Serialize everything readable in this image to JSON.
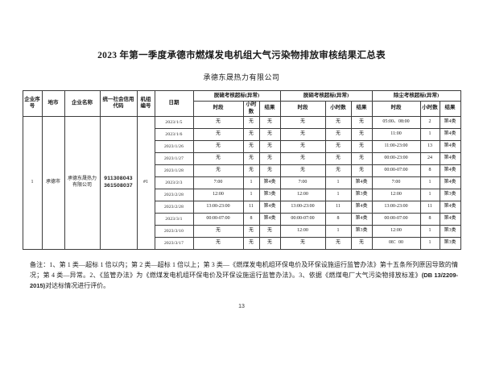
{
  "page": {
    "title": "2023 年第一季度承德市燃煤发电机组大气污染物排放审核结果汇总表",
    "subtitle": "承德东晟热力有限公司",
    "page_number": "13"
  },
  "table": {
    "headers": {
      "serial": "企业序号",
      "city": "地市",
      "company": "企业名称",
      "credit_code": "统一社会信用代码",
      "unit_no": "机组编号",
      "date": "日期",
      "groups": [
        {
          "label": "脱硫考核超标(异常)"
        },
        {
          "label": "脱硝考核超标(异常)"
        },
        {
          "label": "除尘考核超标(异常)"
        }
      ],
      "sub": [
        "时段",
        "小时数",
        "结果"
      ]
    },
    "company_info": {
      "serial": "1",
      "city": "承德市",
      "name": "承德东晟热力有限公司",
      "credit_code": "911308043\n361508037",
      "unit_no": "#1"
    },
    "rows": [
      {
        "date": "2023/1/5",
        "so2": [
          "无",
          "无",
          "无"
        ],
        "nox": [
          "无",
          "无",
          "无"
        ],
        "dust": [
          "05:00、08:00",
          "2",
          "第4类"
        ]
      },
      {
        "date": "2023/1/6",
        "so2": [
          "无",
          "无",
          "无"
        ],
        "nox": [
          "无",
          "无",
          "无"
        ],
        "dust": [
          "11:00",
          "1",
          "第4类"
        ]
      },
      {
        "date": "2023/1/26",
        "so2": [
          "无",
          "无",
          "无"
        ],
        "nox": [
          "无",
          "无",
          "无"
        ],
        "dust": [
          "11:00-23:00",
          "13",
          "第4类"
        ]
      },
      {
        "date": "2023/1/27",
        "so2": [
          "无",
          "无",
          "无"
        ],
        "nox": [
          "无",
          "无",
          "无"
        ],
        "dust": [
          "00:00-23:00",
          "24",
          "第4类"
        ]
      },
      {
        "date": "2023/1/28",
        "so2": [
          "无",
          "无",
          "无"
        ],
        "nox": [
          "无",
          "无",
          "无"
        ],
        "dust": [
          "00:00-07:00",
          "8",
          "第4类"
        ]
      },
      {
        "date": "2023/2/3",
        "so2": [
          "7:00",
          "1",
          "第4类"
        ],
        "nox": [
          "7:00",
          "1",
          "第4类"
        ],
        "dust": [
          "7:00",
          "1",
          "第4类"
        ]
      },
      {
        "date": "2023/2/28",
        "so2": [
          "12:00",
          "1",
          "第3类"
        ],
        "nox": [
          "12:00",
          "1",
          "第3类"
        ],
        "dust": [
          "12:00",
          "1",
          "第3类"
        ]
      },
      {
        "date": "2023/2/28",
        "so2": [
          "13:00-23:00",
          "11",
          "第4类"
        ],
        "nox": [
          "13:00-23:00",
          "11",
          "第4类"
        ],
        "dust": [
          "13:00-23:00",
          "11",
          "第4类"
        ]
      },
      {
        "date": "2023/3/1",
        "so2": [
          "00:00-07:00",
          "8",
          "第4类"
        ],
        "nox": [
          "00:00-07:00",
          "8",
          "第4类"
        ],
        "dust": [
          "00:00-07:00",
          "8",
          "第4类"
        ]
      },
      {
        "date": "2023/3/10",
        "so2": [
          "无",
          "无",
          "无"
        ],
        "nox": [
          "12:00",
          "1",
          "第3类"
        ],
        "dust": [
          "12:00",
          "1",
          "第3类"
        ]
      },
      {
        "date": "2023/3/17",
        "so2": [
          "无",
          "无",
          "无"
        ],
        "nox": [
          "无",
          "无",
          "无"
        ],
        "dust": [
          "08：00",
          "1",
          "第3类"
        ]
      }
    ]
  },
  "notes": {
    "segments": [
      {
        "text": "备注：1、第 1 类—超标 1 倍以内；第 2 类—超标 1 倍以上；第 3 类—《燃煤发电机组环保电价及环保设施运行监管办法》第十五条所列原因导致的情况；第 4 类—异常。2、《监管办法》为《燃煤发电机组环保电价及环保设施运行监管办法》。3、依据《燃煤电厂大气污染物排放标准》",
        "bold": false
      },
      {
        "text": "(DB 13/2209-2015)",
        "bold": true
      },
      {
        "text": "对达标情况进行评价。",
        "bold": false
      }
    ]
  }
}
